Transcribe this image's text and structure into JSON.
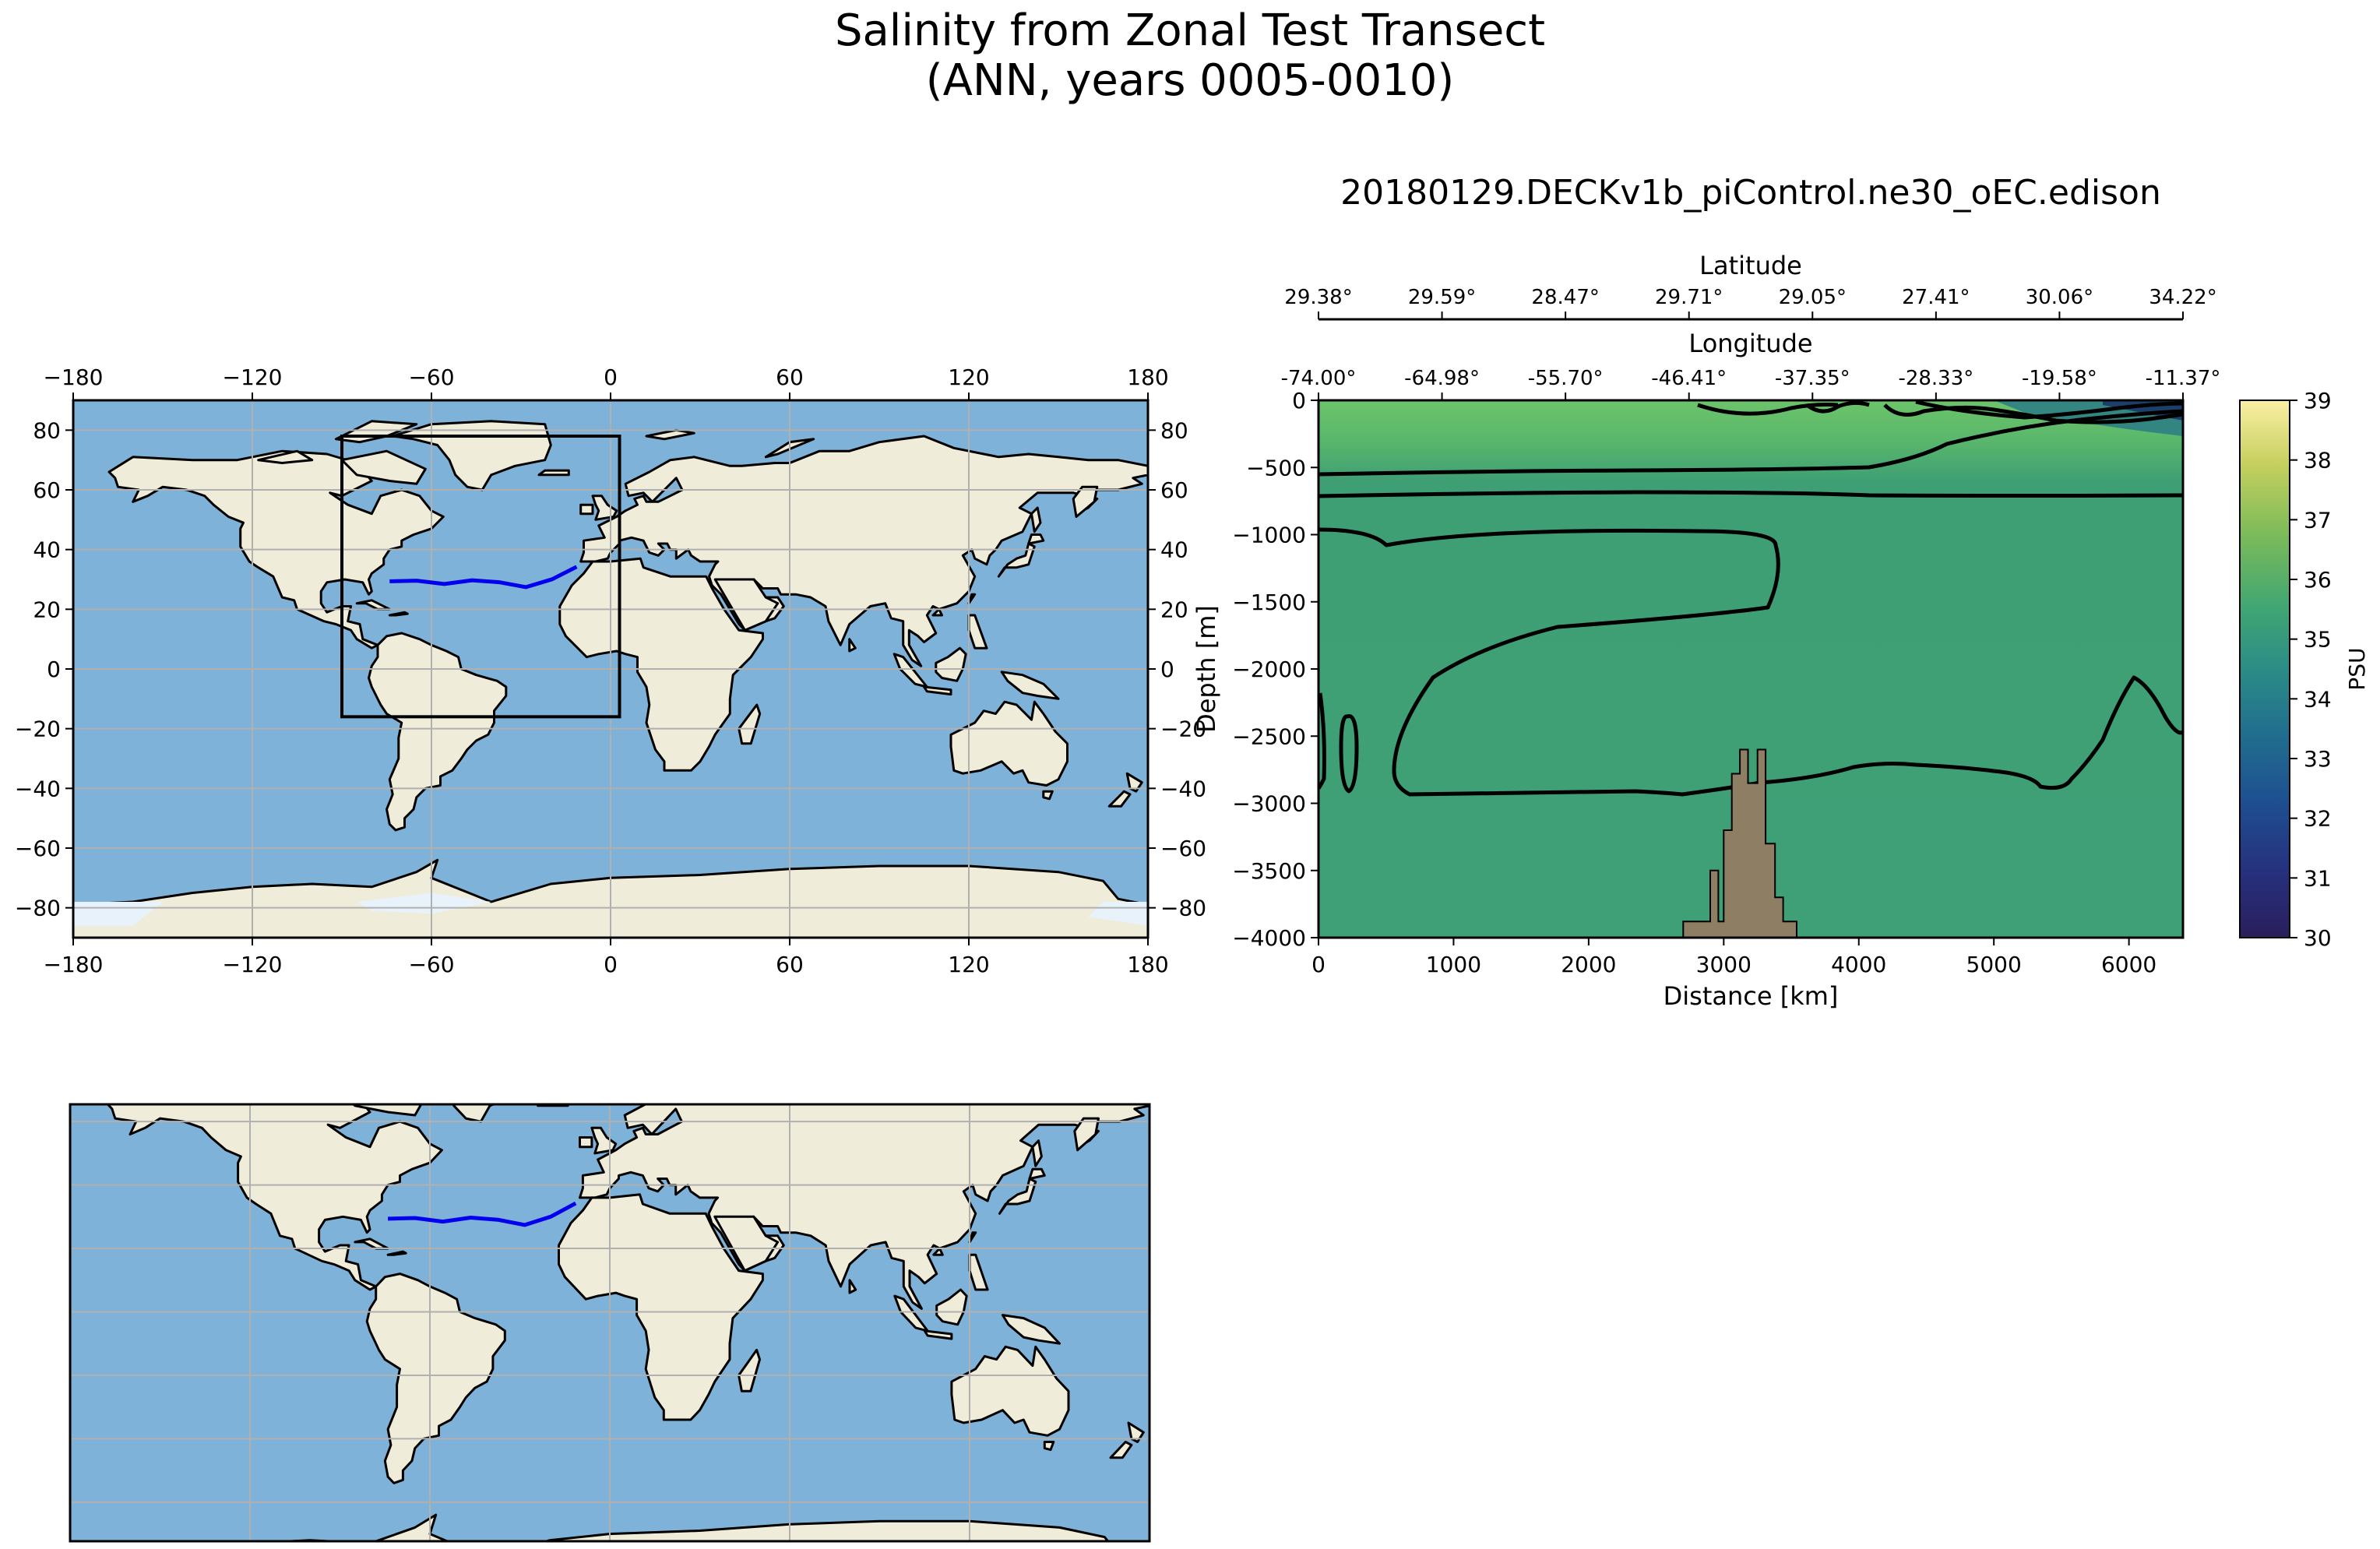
{
  "figure": {
    "title_line1": "Salinity from Zonal Test Transect",
    "title_line2": "(ANN, years 0005-0010)",
    "run_name": "20180129.DECKv1b_piControl.ne30_oEC.edison"
  },
  "colors": {
    "ocean": "#7fb2d9",
    "land": "#efedd9",
    "sea_ice": "#e8f2fb",
    "transect": "#0000ee",
    "grid": "#b0b0b0",
    "bathymetry": "#8e7e63",
    "section_surface": "#63bf6b",
    "section_mid": "#3d9e75",
    "section_deep": "#40a277"
  },
  "chart_data": [
    {
      "type": "map",
      "panel": "top-left map",
      "projection": "PlateCarree",
      "grid": true,
      "xticks": [
        "−180",
        "−120",
        "−60",
        "0",
        "60",
        "120",
        "180"
      ],
      "yticks": [
        "80",
        "60",
        "40",
        "20",
        "0",
        "−20",
        "−40",
        "−60",
        "−80"
      ],
      "xlim": [
        -180,
        180
      ],
      "ylim": [
        -90,
        90
      ],
      "region_box": {
        "lon": [
          -90,
          3
        ],
        "lat": [
          -16,
          78
        ]
      },
      "transect": {
        "lon": [
          -74.0,
          -64.98,
          -55.7,
          -46.41,
          -37.35,
          -28.33,
          -19.58,
          -11.37
        ],
        "lat": [
          29.38,
          29.59,
          28.47,
          29.71,
          29.05,
          27.41,
          30.06,
          34.22
        ]
      }
    },
    {
      "type": "heatmap",
      "panel": "vertical salinity section",
      "xlabel": "Distance [km]",
      "ylabel": "Depth [m]",
      "xlim": [
        0,
        6400
      ],
      "ylim": [
        -4000,
        0
      ],
      "xticks": [
        "0",
        "1000",
        "2000",
        "3000",
        "4000",
        "5000",
        "6000"
      ],
      "yticks": [
        "0",
        "−500",
        "−1000",
        "−1500",
        "−2000",
        "−2500",
        "−3000",
        "−3500",
        "−4000"
      ],
      "top_axis_1": {
        "label": "Longitude",
        "ticks": [
          "-74.00°",
          "-64.98°",
          "-55.70°",
          "-46.41°",
          "-37.35°",
          "-28.33°",
          "-19.58°",
          "-11.37°"
        ]
      },
      "top_axis_2": {
        "label": "Latitude",
        "ticks": [
          "29.38°",
          "29.59°",
          "28.47°",
          "29.71°",
          "29.05°",
          "27.41°",
          "30.06°",
          "34.22°"
        ]
      },
      "salinity_range_psu": [
        34.8,
        36.5
      ],
      "contour_levels_psu": [
        33,
        34,
        35,
        35.5,
        36
      ],
      "bathymetry_depth": {
        "x": [
          2700,
          2700,
          2900,
          2900,
          2960,
          2960,
          3000,
          3000,
          3060,
          3060,
          3120,
          3120,
          3180,
          3180,
          3250,
          3250,
          3310,
          3310,
          3380,
          3380,
          3440,
          3440,
          3540,
          3540
        ],
        "depth": [
          -4000,
          -3880,
          -3880,
          -3500,
          -3500,
          -3880,
          -3880,
          -3200,
          -3200,
          -2780,
          -2780,
          -2600,
          -2600,
          -2850,
          -2850,
          -2600,
          -2600,
          -3300,
          -3300,
          -3700,
          -3700,
          -3880,
          -3880,
          -4000
        ]
      },
      "colorbar": {
        "label": "PSU",
        "min": 30,
        "max": 39,
        "ticks": [
          "39",
          "38",
          "37",
          "36",
          "35",
          "34",
          "33",
          "32",
          "31",
          "30"
        ],
        "colormap": "haline"
      }
    },
    {
      "type": "map",
      "panel": "bottom-left map",
      "projection": "PlateCarree",
      "grid": true,
      "xlim": [
        -180,
        180
      ],
      "ylim": [
        -90,
        90
      ],
      "transect": {
        "lon": [
          -74.0,
          -64.98,
          -55.7,
          -46.41,
          -37.35,
          -28.33,
          -19.58,
          -11.37
        ],
        "lat": [
          29.38,
          29.59,
          28.47,
          29.71,
          29.05,
          27.41,
          30.06,
          34.22
        ]
      }
    }
  ]
}
